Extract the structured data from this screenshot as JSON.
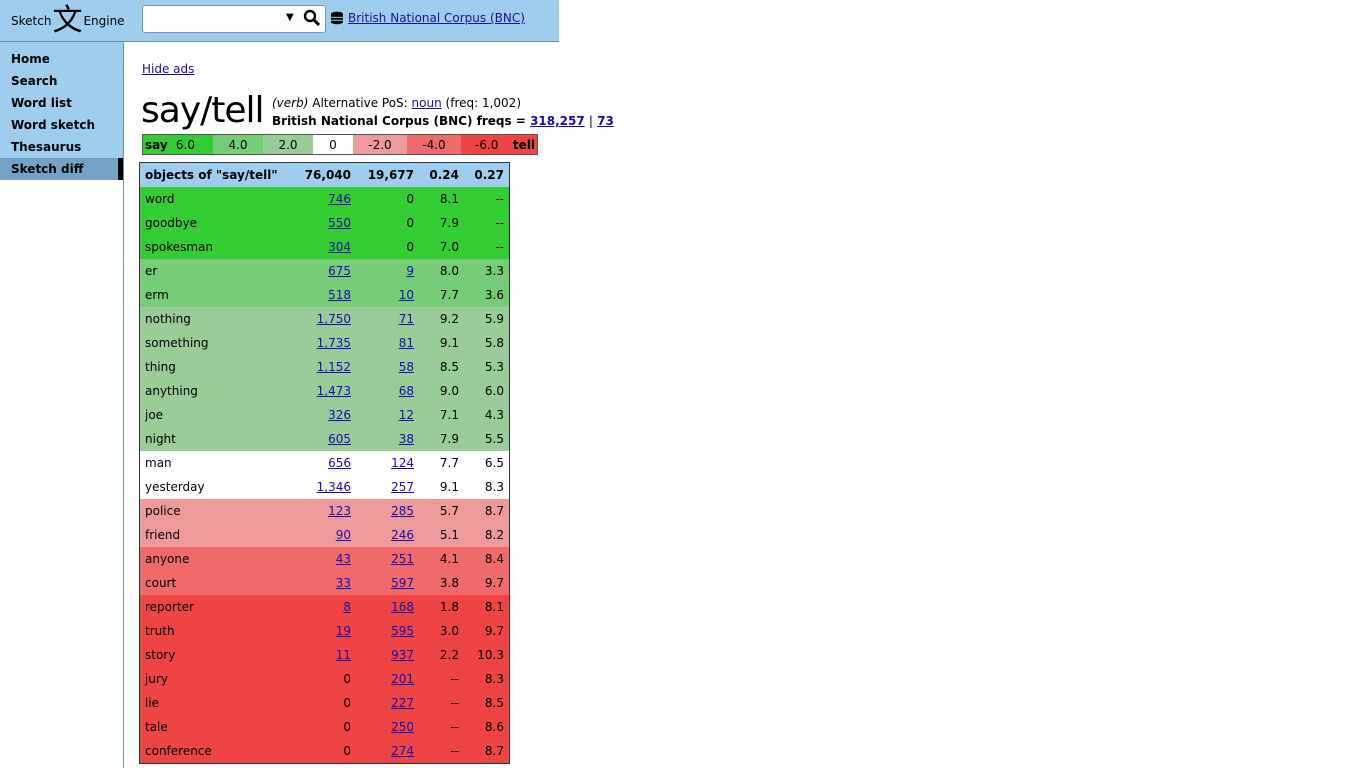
{
  "header": {
    "logo_left": "Sketch",
    "logo_glyph": "文",
    "logo_right": "Engine",
    "search_value": "",
    "corpus_link": "British National Corpus (BNC)"
  },
  "sidebar": {
    "items": [
      {
        "label": "Home"
      },
      {
        "label": "Search"
      },
      {
        "label": "Word list"
      },
      {
        "label": "Word sketch"
      },
      {
        "label": "Thesaurus"
      },
      {
        "label": "Sketch diff",
        "active": true
      }
    ]
  },
  "main": {
    "hide_ads": "Hide ads",
    "headword": "say/tell",
    "pos": "(verb)",
    "alt_pos_label": "Alternative PoS:",
    "alt_pos_link": "noun",
    "alt_pos_freq": "(freq: 1,002)",
    "freq_label": "British National Corpus (BNC) freqs =",
    "freq1": "318,257",
    "freq_sep": "|",
    "freq2": "73"
  },
  "colors": {
    "g1": "#33cc33",
    "g2": "#77cc77",
    "g3": "#99cc99",
    "neutral": "#ffffff",
    "r1": "#ef9a9a",
    "r2": "#ef6a6a",
    "r3": "#ef4444",
    "head": "#9fcdee"
  },
  "legend": {
    "cells": [
      {
        "text": "6.0",
        "prefix": "say",
        "color": "#33cc33"
      },
      {
        "text": "4.0",
        "color": "#77cc77"
      },
      {
        "text": "2.0",
        "color": "#99cc99"
      },
      {
        "text": "0",
        "color": "#ffffff"
      },
      {
        "text": "-2.0",
        "color": "#ef9a9a"
      },
      {
        "text": "-4.0",
        "color": "#ef6a6a"
      },
      {
        "text": "-6.0",
        "suffix": "tell",
        "color": "#ef4444"
      }
    ]
  },
  "table": {
    "header": {
      "title": "objects of \"say/tell\"",
      "f1": "76,040",
      "f2": "19,677",
      "s1": "0.24",
      "s2": "0.27"
    },
    "rows": [
      {
        "word": "word",
        "f1": "746",
        "f2": "0",
        "s1": "8.1",
        "s2": "--",
        "color": "#33cc33",
        "l1": true,
        "l2": false
      },
      {
        "word": "goodbye",
        "f1": "550",
        "f2": "0",
        "s1": "7.9",
        "s2": "--",
        "color": "#33cc33",
        "l1": true,
        "l2": false
      },
      {
        "word": "spokesman",
        "f1": "304",
        "f2": "0",
        "s1": "7.0",
        "s2": "--",
        "color": "#33cc33",
        "l1": true,
        "l2": false
      },
      {
        "word": "er",
        "f1": "675",
        "f2": "9",
        "s1": "8.0",
        "s2": "3.3",
        "color": "#77cc77",
        "l1": true,
        "l2": true
      },
      {
        "word": "erm",
        "f1": "518",
        "f2": "10",
        "s1": "7.7",
        "s2": "3.6",
        "color": "#77cc77",
        "l1": true,
        "l2": true
      },
      {
        "word": "nothing",
        "f1": "1,750",
        "f2": "71",
        "s1": "9.2",
        "s2": "5.9",
        "color": "#99cc99",
        "l1": true,
        "l2": true
      },
      {
        "word": "something",
        "f1": "1,735",
        "f2": "81",
        "s1": "9.1",
        "s2": "5.8",
        "color": "#99cc99",
        "l1": true,
        "l2": true
      },
      {
        "word": "thing",
        "f1": "1,152",
        "f2": "58",
        "s1": "8.5",
        "s2": "5.3",
        "color": "#99cc99",
        "l1": true,
        "l2": true
      },
      {
        "word": "anything",
        "f1": "1,473",
        "f2": "68",
        "s1": "9.0",
        "s2": "6.0",
        "color": "#99cc99",
        "l1": true,
        "l2": true
      },
      {
        "word": "joe",
        "f1": "326",
        "f2": "12",
        "s1": "7.1",
        "s2": "4.3",
        "color": "#99cc99",
        "l1": true,
        "l2": true
      },
      {
        "word": "night",
        "f1": "605",
        "f2": "38",
        "s1": "7.9",
        "s2": "5.5",
        "color": "#99cc99",
        "l1": true,
        "l2": true
      },
      {
        "word": "man",
        "f1": "656",
        "f2": "124",
        "s1": "7.7",
        "s2": "6.5",
        "color": "#ffffff",
        "l1": true,
        "l2": true
      },
      {
        "word": "yesterday",
        "f1": "1,346",
        "f2": "257",
        "s1": "9.1",
        "s2": "8.3",
        "color": "#ffffff",
        "l1": true,
        "l2": true
      },
      {
        "word": "police",
        "f1": "123",
        "f2": "285",
        "s1": "5.7",
        "s2": "8.7",
        "color": "#ef9a9a",
        "l1": true,
        "l2": true
      },
      {
        "word": "friend",
        "f1": "90",
        "f2": "246",
        "s1": "5.1",
        "s2": "8.2",
        "color": "#ef9a9a",
        "l1": true,
        "l2": true
      },
      {
        "word": "anyone",
        "f1": "43",
        "f2": "251",
        "s1": "4.1",
        "s2": "8.4",
        "color": "#ef6a6a",
        "l1": true,
        "l2": true
      },
      {
        "word": "court",
        "f1": "33",
        "f2": "597",
        "s1": "3.8",
        "s2": "9.7",
        "color": "#ef6a6a",
        "l1": true,
        "l2": true
      },
      {
        "word": "reporter",
        "f1": "8",
        "f2": "168",
        "s1": "1.8",
        "s2": "8.1",
        "color": "#ef4444",
        "l1": true,
        "l2": true
      },
      {
        "word": "truth",
        "f1": "19",
        "f2": "595",
        "s1": "3.0",
        "s2": "9.7",
        "color": "#ef4444",
        "l1": true,
        "l2": true
      },
      {
        "word": "story",
        "f1": "11",
        "f2": "937",
        "s1": "2.2",
        "s2": "10.3",
        "color": "#ef4444",
        "l1": true,
        "l2": true
      },
      {
        "word": "jury",
        "f1": "0",
        "f2": "201",
        "s1": "--",
        "s2": "8.3",
        "color": "#ef4444",
        "l1": false,
        "l2": true
      },
      {
        "word": "lie",
        "f1": "0",
        "f2": "227",
        "s1": "--",
        "s2": "8.5",
        "color": "#ef4444",
        "l1": false,
        "l2": true
      },
      {
        "word": "tale",
        "f1": "0",
        "f2": "250",
        "s1": "--",
        "s2": "8.6",
        "color": "#ef4444",
        "l1": false,
        "l2": true
      },
      {
        "word": "conference",
        "f1": "0",
        "f2": "274",
        "s1": "--",
        "s2": "8.7",
        "color": "#ef4444",
        "l1": false,
        "l2": true
      }
    ]
  }
}
